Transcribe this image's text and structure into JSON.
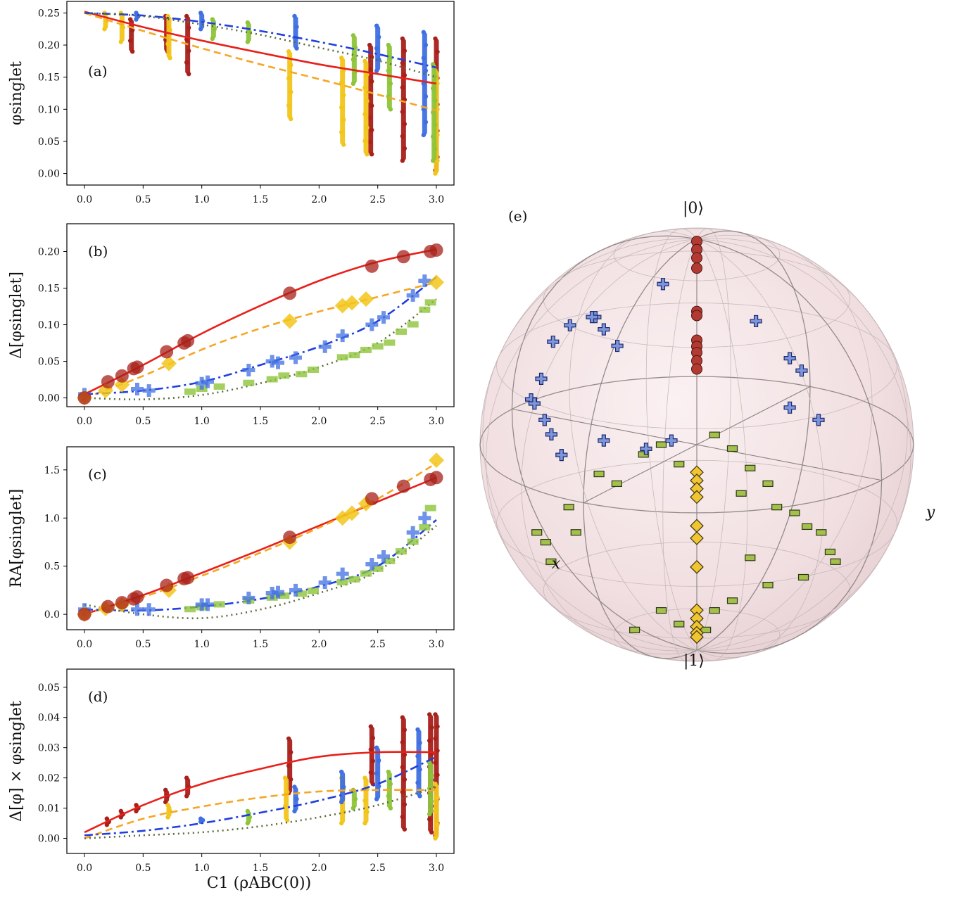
{
  "colors": {
    "red": "#e8201a",
    "darkred": "#a8201a",
    "orange": "#f5a623",
    "gold": "#f2c51a",
    "blue": "#1f3fe0",
    "royal": "#3f6fe0",
    "lightgreen": "#8dc43a",
    "olive": "#5a6b3a",
    "sphere": "#f4e4e6",
    "grid": "#9a9a9a"
  },
  "chart_data": [
    {
      "type": "scatter",
      "panel_label": "(a)",
      "ylabel": "φsinglet",
      "xlabel": "",
      "xlim": [
        -0.15,
        3.15
      ],
      "ylim": [
        -0.018,
        0.268
      ],
      "xticks": [
        "0.0",
        "0.5",
        "1.0",
        "1.5",
        "2.0",
        "2.5",
        "3.0"
      ],
      "yticks": [
        "0.00",
        "0.05",
        "0.10",
        "0.15",
        "0.20",
        "0.25"
      ],
      "series": [
        {
          "style": "red-solid",
          "x": [
            0.0,
            0.5,
            1.0,
            1.5,
            2.0,
            2.5,
            3.0
          ],
          "y": [
            0.252,
            0.228,
            0.207,
            0.188,
            0.17,
            0.155,
            0.14
          ]
        },
        {
          "style": "orange-dashed",
          "x": [
            0.0,
            0.5,
            1.0,
            1.5,
            2.0,
            2.5,
            3.0
          ],
          "y": [
            0.25,
            0.222,
            0.195,
            0.17,
            0.147,
            0.123,
            0.098
          ]
        },
        {
          "style": "blue-dashdot",
          "x": [
            0.0,
            0.5,
            1.0,
            1.5,
            2.0,
            2.5,
            3.0
          ],
          "y": [
            0.25,
            0.246,
            0.236,
            0.222,
            0.205,
            0.186,
            0.165
          ]
        },
        {
          "style": "olive-dotted",
          "x": [
            0.0,
            0.5,
            1.0,
            1.5,
            2.0,
            2.5,
            3.0
          ],
          "y": [
            0.25,
            0.245,
            0.232,
            0.216,
            0.196,
            0.176,
            0.15
          ]
        }
      ],
      "columns": [
        {
          "color": "darkred",
          "x": 0.4,
          "ymin": 0.19,
          "ymax": 0.24
        },
        {
          "color": "darkred",
          "x": 0.7,
          "ymin": 0.19,
          "ymax": 0.245
        },
        {
          "color": "darkred",
          "x": 0.88,
          "ymin": 0.155,
          "ymax": 0.245
        },
        {
          "color": "darkred",
          "x": 2.44,
          "ymin": 0.03,
          "ymax": 0.2
        },
        {
          "color": "darkred",
          "x": 2.72,
          "ymin": 0.02,
          "ymax": 0.21
        },
        {
          "color": "darkred",
          "x": 3.0,
          "ymin": 0.005,
          "ymax": 0.21
        },
        {
          "color": "gold",
          "x": 0.18,
          "ymin": 0.225,
          "ymax": 0.25
        },
        {
          "color": "gold",
          "x": 0.32,
          "ymin": 0.205,
          "ymax": 0.25
        },
        {
          "color": "gold",
          "x": 0.72,
          "ymin": 0.18,
          "ymax": 0.245
        },
        {
          "color": "gold",
          "x": 1.75,
          "ymin": 0.085,
          "ymax": 0.19
        },
        {
          "color": "gold",
          "x": 2.2,
          "ymin": 0.045,
          "ymax": 0.18
        },
        {
          "color": "gold",
          "x": 2.4,
          "ymin": 0.03,
          "ymax": 0.175
        },
        {
          "color": "gold",
          "x": 3.0,
          "ymin": 0.0,
          "ymax": 0.16
        },
        {
          "color": "royal",
          "x": 0.45,
          "ymin": 0.24,
          "ymax": 0.25
        },
        {
          "color": "royal",
          "x": 1.0,
          "ymin": 0.225,
          "ymax": 0.25
        },
        {
          "color": "royal",
          "x": 1.8,
          "ymin": 0.195,
          "ymax": 0.245
        },
        {
          "color": "royal",
          "x": 2.5,
          "ymin": 0.16,
          "ymax": 0.23
        },
        {
          "color": "royal",
          "x": 2.9,
          "ymin": 0.06,
          "ymax": 0.22
        },
        {
          "color": "lightgreen",
          "x": 1.1,
          "ymin": 0.21,
          "ymax": 0.24
        },
        {
          "color": "lightgreen",
          "x": 1.4,
          "ymin": 0.205,
          "ymax": 0.235
        },
        {
          "color": "lightgreen",
          "x": 2.3,
          "ymin": 0.14,
          "ymax": 0.215
        },
        {
          "color": "lightgreen",
          "x": 2.6,
          "ymin": 0.1,
          "ymax": 0.2
        },
        {
          "color": "lightgreen",
          "x": 2.98,
          "ymin": 0.02,
          "ymax": 0.17
        }
      ]
    },
    {
      "type": "scatter",
      "panel_label": "(b)",
      "ylabel": "Δ[φsinglet]",
      "xlabel": "",
      "xlim": [
        -0.15,
        3.15
      ],
      "ylim": [
        -0.012,
        0.238
      ],
      "xticks": [
        "0.0",
        "0.5",
        "1.0",
        "1.5",
        "2.0",
        "2.5",
        "3.0"
      ],
      "yticks": [
        "0.00",
        "0.05",
        "0.10",
        "0.15",
        "0.20"
      ],
      "series": [
        {
          "style": "red-solid",
          "x": [
            0.0,
            0.5,
            1.0,
            1.5,
            2.0,
            2.5,
            3.0
          ],
          "y": [
            0.005,
            0.045,
            0.088,
            0.126,
            0.16,
            0.186,
            0.203
          ]
        },
        {
          "style": "orange-dashed",
          "x": [
            0.0,
            0.5,
            1.0,
            1.5,
            2.0,
            2.5,
            3.0
          ],
          "y": [
            0.0,
            0.03,
            0.066,
            0.095,
            0.118,
            0.138,
            0.158
          ]
        },
        {
          "style": "blue-dashdot",
          "x": [
            0.0,
            0.5,
            1.0,
            1.5,
            2.0,
            2.5,
            3.0
          ],
          "y": [
            0.005,
            0.01,
            0.022,
            0.045,
            0.07,
            0.105,
            0.165
          ]
        },
        {
          "style": "olive-dotted",
          "x": [
            0.0,
            0.5,
            1.0,
            1.5,
            2.0,
            2.5,
            3.0
          ],
          "y": [
            0.0,
            -0.002,
            0.004,
            0.02,
            0.042,
            0.075,
            0.135
          ]
        }
      ],
      "markers": {
        "circles": {
          "x": [
            0.0,
            0.2,
            0.32,
            0.42,
            0.45,
            0.7,
            0.85,
            0.88,
            1.75,
            2.45,
            2.72,
            2.95,
            3.0
          ],
          "y": [
            0.0,
            0.022,
            0.03,
            0.04,
            0.042,
            0.063,
            0.075,
            0.078,
            0.143,
            0.18,
            0.193,
            0.2,
            0.202
          ]
        },
        "diamonds": {
          "x": [
            0.0,
            0.18,
            0.32,
            0.72,
            1.75,
            2.2,
            2.28,
            2.4,
            3.0
          ],
          "y": [
            0.0,
            0.01,
            0.018,
            0.047,
            0.105,
            0.126,
            0.13,
            0.135,
            0.158
          ]
        },
        "crosses": {
          "x": [
            0.0,
            0.45,
            0.55,
            1.0,
            1.05,
            1.4,
            1.6,
            1.65,
            1.8,
            2.05,
            2.2,
            2.45,
            2.55,
            2.8,
            2.9
          ],
          "y": [
            0.005,
            0.012,
            0.01,
            0.02,
            0.022,
            0.038,
            0.05,
            0.048,
            0.055,
            0.07,
            0.085,
            0.1,
            0.11,
            0.14,
            0.16
          ]
        },
        "rects": {
          "x": [
            0.9,
            1.0,
            1.15,
            1.4,
            1.6,
            1.7,
            1.85,
            1.95,
            2.2,
            2.3,
            2.4,
            2.5,
            2.6,
            2.7,
            2.8,
            2.9,
            2.95
          ],
          "y": [
            0.008,
            0.012,
            0.015,
            0.02,
            0.025,
            0.03,
            0.032,
            0.038,
            0.055,
            0.058,
            0.065,
            0.07,
            0.075,
            0.09,
            0.1,
            0.12,
            0.13
          ]
        }
      }
    },
    {
      "type": "scatter",
      "panel_label": "(c)",
      "ylabel": "RA[φsinglet]",
      "xlabel": "",
      "xlim": [
        -0.15,
        3.15
      ],
      "ylim": [
        -0.16,
        1.74
      ],
      "xticks": [
        "0.0",
        "0.5",
        "1.0",
        "1.5",
        "2.0",
        "2.5",
        "3.0"
      ],
      "yticks": [
        "0.0",
        "0.5",
        "1.0",
        "1.5"
      ],
      "series": [
        {
          "style": "red-solid",
          "x": [
            0.0,
            0.5,
            1.0,
            1.5,
            2.0,
            2.5,
            3.0
          ],
          "y": [
            0.0,
            0.2,
            0.43,
            0.67,
            0.92,
            1.17,
            1.42
          ]
        },
        {
          "style": "orange-dashed",
          "x": [
            0.0,
            0.5,
            1.0,
            1.5,
            2.0,
            2.5,
            3.0
          ],
          "y": [
            0.0,
            0.18,
            0.4,
            0.64,
            0.9,
            1.2,
            1.57
          ]
        },
        {
          "style": "blue-dashdot",
          "x": [
            0.0,
            0.5,
            1.0,
            1.5,
            2.0,
            2.5,
            3.0
          ],
          "y": [
            0.05,
            0.04,
            0.08,
            0.16,
            0.29,
            0.5,
            0.98
          ]
        },
        {
          "style": "olive-dotted",
          "x": [
            0.0,
            0.5,
            1.0,
            1.5,
            2.0,
            2.5,
            3.0
          ],
          "y": [
            0.1,
            0.0,
            -0.04,
            0.05,
            0.22,
            0.45,
            0.92
          ]
        }
      ],
      "markers": {
        "circles": {
          "x": [
            0.0,
            0.2,
            0.32,
            0.42,
            0.45,
            0.7,
            0.85,
            0.88,
            1.75,
            2.45,
            2.72,
            2.95,
            3.0
          ],
          "y": [
            0.0,
            0.08,
            0.12,
            0.16,
            0.18,
            0.3,
            0.37,
            0.38,
            0.8,
            1.2,
            1.33,
            1.4,
            1.42
          ]
        },
        "diamonds": {
          "x": [
            0.0,
            0.18,
            0.32,
            0.72,
            1.75,
            2.2,
            2.28,
            2.4,
            3.0
          ],
          "y": [
            0.0,
            0.06,
            0.1,
            0.25,
            0.75,
            1.0,
            1.05,
            1.15,
            1.6
          ]
        },
        "crosses": {
          "x": [
            0.0,
            0.45,
            0.55,
            1.0,
            1.05,
            1.4,
            1.6,
            1.65,
            1.8,
            2.05,
            2.2,
            2.45,
            2.55,
            2.8,
            2.9
          ],
          "y": [
            0.05,
            0.05,
            0.05,
            0.1,
            0.1,
            0.17,
            0.22,
            0.23,
            0.25,
            0.33,
            0.42,
            0.52,
            0.6,
            0.85,
            1.0
          ]
        },
        "rects": {
          "x": [
            0.9,
            1.0,
            1.15,
            1.4,
            1.6,
            1.7,
            1.85,
            1.95,
            2.2,
            2.3,
            2.4,
            2.5,
            2.6,
            2.7,
            2.8,
            2.9,
            2.95
          ],
          "y": [
            0.05,
            0.07,
            0.1,
            0.14,
            0.17,
            0.19,
            0.21,
            0.24,
            0.33,
            0.36,
            0.42,
            0.47,
            0.55,
            0.65,
            0.75,
            0.9,
            1.1
          ]
        }
      }
    },
    {
      "type": "scatter",
      "panel_label": "(d)",
      "ylabel": "Δ[φ] × φsinglet",
      "xlabel": "C1 (ρABC(0))",
      "xlim": [
        -0.15,
        3.15
      ],
      "ylim": [
        -0.005,
        0.056
      ],
      "xticks": [
        "0.0",
        "0.5",
        "1.0",
        "1.5",
        "2.0",
        "2.5",
        "3.0"
      ],
      "yticks": [
        "0.00",
        "0.01",
        "0.02",
        "0.03",
        "0.04",
        "0.05"
      ],
      "series": [
        {
          "style": "red-solid",
          "x": [
            0.0,
            0.5,
            1.0,
            1.5,
            2.0,
            2.5,
            3.0
          ],
          "y": [
            0.002,
            0.011,
            0.018,
            0.023,
            0.027,
            0.0285,
            0.0285
          ]
        },
        {
          "style": "orange-dashed",
          "x": [
            0.0,
            0.5,
            1.0,
            1.5,
            2.0,
            2.5,
            3.0
          ],
          "y": [
            0.0,
            0.0065,
            0.0105,
            0.0135,
            0.0155,
            0.016,
            0.016
          ]
        },
        {
          "style": "blue-dashdot",
          "x": [
            0.0,
            0.5,
            1.0,
            1.5,
            2.0,
            2.5,
            3.0
          ],
          "y": [
            0.001,
            0.0025,
            0.005,
            0.0085,
            0.0125,
            0.018,
            0.027
          ]
        },
        {
          "style": "olive-dotted",
          "x": [
            0.0,
            0.5,
            1.0,
            1.5,
            2.0,
            2.5,
            3.0
          ],
          "y": [
            0.0,
            0.001,
            0.002,
            0.004,
            0.007,
            0.011,
            0.017
          ]
        }
      ],
      "columns": [
        {
          "color": "darkred",
          "x": 0.2,
          "ymin": 0.0045,
          "ymax": 0.0065
        },
        {
          "color": "darkred",
          "x": 0.32,
          "ymin": 0.007,
          "ymax": 0.009
        },
        {
          "color": "darkred",
          "x": 0.45,
          "ymin": 0.009,
          "ymax": 0.011
        },
        {
          "color": "darkred",
          "x": 0.7,
          "ymin": 0.012,
          "ymax": 0.016
        },
        {
          "color": "darkred",
          "x": 0.88,
          "ymin": 0.014,
          "ymax": 0.02
        },
        {
          "color": "darkred",
          "x": 1.75,
          "ymin": 0.015,
          "ymax": 0.033
        },
        {
          "color": "darkred",
          "x": 2.45,
          "ymin": 0.018,
          "ymax": 0.037
        },
        {
          "color": "darkred",
          "x": 2.72,
          "ymin": 0.003,
          "ymax": 0.04
        },
        {
          "color": "darkred",
          "x": 2.95,
          "ymin": 0.002,
          "ymax": 0.041
        },
        {
          "color": "darkred",
          "x": 3.0,
          "ymin": 0.001,
          "ymax": 0.041
        },
        {
          "color": "gold",
          "x": 0.72,
          "ymin": 0.007,
          "ymax": 0.011
        },
        {
          "color": "gold",
          "x": 1.72,
          "ymin": 0.006,
          "ymax": 0.02
        },
        {
          "color": "gold",
          "x": 2.2,
          "ymin": 0.005,
          "ymax": 0.02
        },
        {
          "color": "gold",
          "x": 2.4,
          "ymin": 0.005,
          "ymax": 0.02
        },
        {
          "color": "gold",
          "x": 3.0,
          "ymin": 0.0,
          "ymax": 0.018
        },
        {
          "color": "royal",
          "x": 1.0,
          "ymin": 0.0055,
          "ymax": 0.0065
        },
        {
          "color": "royal",
          "x": 1.8,
          "ymin": 0.009,
          "ymax": 0.017
        },
        {
          "color": "royal",
          "x": 2.2,
          "ymin": 0.012,
          "ymax": 0.022
        },
        {
          "color": "royal",
          "x": 2.5,
          "ymin": 0.013,
          "ymax": 0.03
        },
        {
          "color": "royal",
          "x": 2.85,
          "ymin": 0.014,
          "ymax": 0.036
        },
        {
          "color": "lightgreen",
          "x": 1.4,
          "ymin": 0.005,
          "ymax": 0.009
        },
        {
          "color": "lightgreen",
          "x": 2.3,
          "ymin": 0.01,
          "ymax": 0.016
        },
        {
          "color": "lightgreen",
          "x": 2.6,
          "ymin": 0.01,
          "ymax": 0.022
        },
        {
          "color": "lightgreen",
          "x": 2.95,
          "ymin": 0.008,
          "ymax": 0.025
        }
      ]
    }
  ],
  "bloch": {
    "panel_label": "(e)",
    "label_zero": "|0⟩",
    "label_one": "|1⟩",
    "label_x": "x",
    "label_y": "y"
  }
}
